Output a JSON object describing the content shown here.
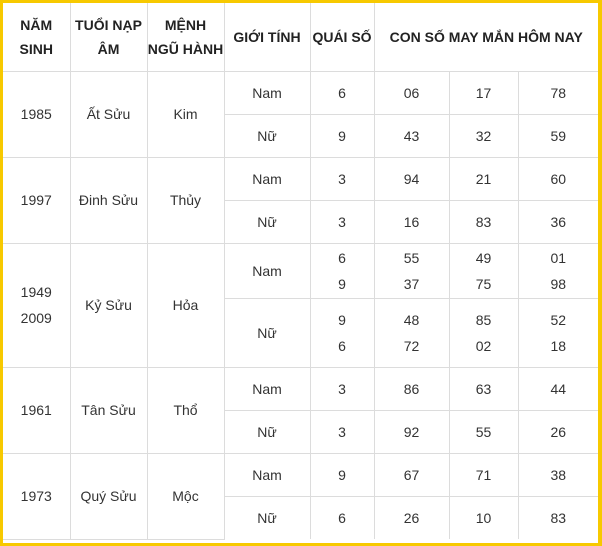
{
  "headers": {
    "nam_sinh": "NĂM SINH",
    "tuoi": "TUỔI NẠP ÂM",
    "menh": "MỆNH NGŨ HÀNH",
    "gioi_tinh": "GIỚI TÍNH",
    "quai_so": "QUÁI SỐ",
    "con_so": "CON SỐ MAY MẮN HÔM NAY"
  },
  "colors": {
    "border": "#f7c900"
  },
  "groups": [
    {
      "years": [
        "1985"
      ],
      "tuoi": "Ất Sửu",
      "menh": "Kim",
      "rows": [
        {
          "gender": "Nam",
          "quai": [
            "6"
          ],
          "nums": [
            [
              "06"
            ],
            [
              "17"
            ],
            [
              "78"
            ]
          ]
        },
        {
          "gender": "Nữ",
          "quai": [
            "9"
          ],
          "nums": [
            [
              "43"
            ],
            [
              "32"
            ],
            [
              "59"
            ]
          ]
        }
      ]
    },
    {
      "years": [
        "1997"
      ],
      "tuoi": "Đinh Sửu",
      "menh": "Thủy",
      "rows": [
        {
          "gender": "Nam",
          "quai": [
            "3"
          ],
          "nums": [
            [
              "94"
            ],
            [
              "21"
            ],
            [
              "60"
            ]
          ]
        },
        {
          "gender": "Nữ",
          "quai": [
            "3"
          ],
          "nums": [
            [
              "16"
            ],
            [
              "83"
            ],
            [
              "36"
            ]
          ]
        }
      ]
    },
    {
      "years": [
        "1949",
        "2009"
      ],
      "tuoi": "Kỷ Sửu",
      "menh": "Hỏa",
      "rows": [
        {
          "gender": "Nam",
          "quai": [
            "6",
            "9"
          ],
          "nums": [
            [
              "55",
              "37"
            ],
            [
              "49",
              "75"
            ],
            [
              "01",
              "98"
            ]
          ]
        },
        {
          "gender": "Nữ",
          "quai": [
            "9",
            "6"
          ],
          "nums": [
            [
              "48",
              "72"
            ],
            [
              "85",
              "02"
            ],
            [
              "52",
              "18"
            ]
          ]
        }
      ]
    },
    {
      "years": [
        "1961"
      ],
      "tuoi": "Tân Sửu",
      "menh": "Thổ",
      "rows": [
        {
          "gender": "Nam",
          "quai": [
            "3"
          ],
          "nums": [
            [
              "86"
            ],
            [
              "63"
            ],
            [
              "44"
            ]
          ]
        },
        {
          "gender": "Nữ",
          "quai": [
            "3"
          ],
          "nums": [
            [
              "92"
            ],
            [
              "55"
            ],
            [
              "26"
            ]
          ]
        }
      ]
    },
    {
      "years": [
        "1973"
      ],
      "tuoi": "Quý Sửu",
      "menh": "Mộc",
      "rows": [
        {
          "gender": "Nam",
          "quai": [
            "9"
          ],
          "nums": [
            [
              "67"
            ],
            [
              "71"
            ],
            [
              "38"
            ]
          ]
        },
        {
          "gender": "Nữ",
          "quai": [
            "6"
          ],
          "nums": [
            [
              "26"
            ],
            [
              "10"
            ],
            [
              "83"
            ]
          ]
        }
      ]
    }
  ]
}
